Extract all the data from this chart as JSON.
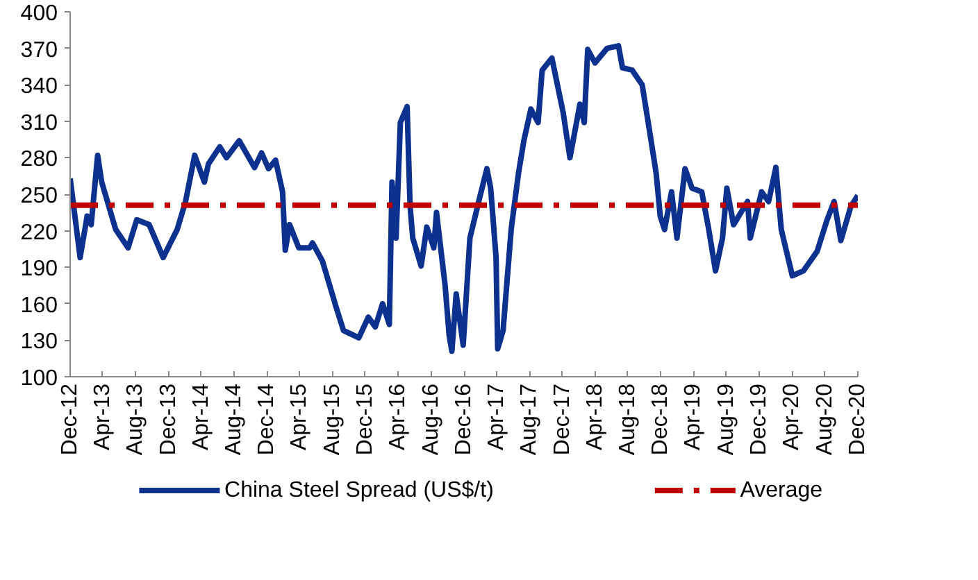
{
  "chart_data": {
    "type": "line",
    "x": [
      "2012-12-01",
      "2013-01-07",
      "2013-02-02",
      "2013-02-17",
      "2013-03-13",
      "2013-03-28",
      "2013-05-19",
      "2013-07-04",
      "2013-08-05",
      "2013-09-20",
      "2013-11-11",
      "2014-01-02",
      "2014-02-02",
      "2014-03-08",
      "2014-04-13",
      "2014-04-28",
      "2014-06-09",
      "2014-07-04",
      "2014-08-20",
      "2014-10-16",
      "2014-11-11",
      "2014-12-07",
      "2015-01-02",
      "2015-01-28",
      "2015-02-07",
      "2015-02-23",
      "2015-03-29",
      "2015-05-09",
      "2015-05-19",
      "2015-06-25",
      "2015-08-15",
      "2015-09-11",
      "2015-11-07",
      "2015-12-12",
      "2016-01-07",
      "2016-02-03",
      "2016-02-28",
      "2016-03-09",
      "2016-03-24",
      "2016-04-09",
      "2016-05-04",
      "2016-05-15",
      "2016-05-25",
      "2016-06-25",
      "2016-07-16",
      "2016-08-11",
      "2016-08-21",
      "2016-09-22",
      "2016-10-07",
      "2016-10-17",
      "2016-11-02",
      "2016-11-28",
      "2016-12-23",
      "2017-01-29",
      "2017-02-24",
      "2017-03-10",
      "2017-03-30",
      "2017-04-05",
      "2017-04-25",
      "2017-05-25",
      "2017-06-21",
      "2017-07-11",
      "2017-08-06",
      "2017-09-02",
      "2017-09-17",
      "2017-10-23",
      "2017-12-04",
      "2017-12-29",
      "2018-02-04",
      "2018-02-20",
      "2018-03-05",
      "2018-04-01",
      "2018-05-16",
      "2018-06-27",
      "2018-07-12",
      "2018-08-17",
      "2018-09-23",
      "2018-10-24",
      "2018-11-14",
      "2018-11-29",
      "2018-12-15",
      "2019-01-10",
      "2019-01-30",
      "2019-03-01",
      "2019-03-27",
      "2019-05-02",
      "2019-05-28",
      "2019-06-22",
      "2019-07-18",
      "2019-08-03",
      "2019-08-28",
      "2019-10-19",
      "2019-10-29",
      "2019-12-10",
      "2020-01-05",
      "2020-02-01",
      "2020-02-21",
      "2020-04-02",
      "2020-05-13",
      "2020-07-03",
      "2020-08-09",
      "2020-09-04",
      "2020-09-29",
      "2020-11-05",
      "2020-12-01"
    ],
    "series": [
      {
        "name": "China Steel Spread (US$/t)",
        "color": "#0d318f",
        "values": [
          263,
          198,
          232,
          225,
          282,
          260,
          221,
          206,
          229,
          225,
          198,
          221,
          244,
          282,
          260,
          275,
          289,
          280,
          294,
          272,
          284,
          271,
          278,
          252,
          204,
          225,
          206,
          206,
          210,
          195,
          157,
          138,
          132,
          149,
          141,
          160,
          143,
          260,
          214,
          309,
          322,
          240,
          214,
          191,
          223,
          206,
          235,
          175,
          134,
          121,
          168,
          126,
          214,
          248,
          271,
          255,
          198,
          123,
          138,
          221,
          267,
          294,
          320,
          309,
          352,
          362,
          317,
          280,
          324,
          309,
          369,
          358,
          370,
          372,
          354,
          352,
          340,
          297,
          267,
          232,
          221,
          252,
          214,
          271,
          255,
          252,
          221,
          187,
          214,
          255,
          225,
          244,
          214,
          252,
          244,
          272,
          221,
          183,
          187,
          203,
          229,
          244,
          212,
          240,
          249
        ]
      }
    ],
    "ref_lines": [
      {
        "axis": "y",
        "value": 241,
        "label": "Average",
        "color": "#c00000",
        "line_style": "dashdot"
      }
    ],
    "ylim": [
      100,
      400
    ],
    "yticks": [
      100,
      130,
      160,
      190,
      220,
      250,
      280,
      310,
      340,
      370,
      400
    ],
    "xlim": [
      "2012-12-01",
      "2020-12-01"
    ],
    "xticks": [
      {
        "value": "2012-12-01",
        "label": "Dec-12"
      },
      {
        "value": "2013-04-01",
        "label": "Apr-13"
      },
      {
        "value": "2013-08-01",
        "label": "Aug-13"
      },
      {
        "value": "2013-12-01",
        "label": "Dec-13"
      },
      {
        "value": "2014-04-01",
        "label": "Apr-14"
      },
      {
        "value": "2014-08-01",
        "label": "Aug-14"
      },
      {
        "value": "2014-12-01",
        "label": "Dec-14"
      },
      {
        "value": "2015-04-01",
        "label": "Apr-15"
      },
      {
        "value": "2015-08-01",
        "label": "Aug-15"
      },
      {
        "value": "2015-12-01",
        "label": "Dec-15"
      },
      {
        "value": "2016-04-01",
        "label": "Apr-16"
      },
      {
        "value": "2016-08-01",
        "label": "Aug-16"
      },
      {
        "value": "2016-12-01",
        "label": "Dec-16"
      },
      {
        "value": "2017-04-01",
        "label": "Apr-17"
      },
      {
        "value": "2017-08-01",
        "label": "Aug-17"
      },
      {
        "value": "2017-12-01",
        "label": "Dec-17"
      },
      {
        "value": "2018-04-01",
        "label": "Apr-18"
      },
      {
        "value": "2018-08-01",
        "label": "Aug-18"
      },
      {
        "value": "2018-12-01",
        "label": "Dec-18"
      },
      {
        "value": "2019-04-01",
        "label": "Apr-19"
      },
      {
        "value": "2019-08-01",
        "label": "Aug-19"
      },
      {
        "value": "2019-12-01",
        "label": "Dec-19"
      },
      {
        "value": "2020-04-01",
        "label": "Apr-20"
      },
      {
        "value": "2020-08-01",
        "label": "Aug-20"
      },
      {
        "value": "2020-12-01",
        "label": "Dec-20"
      }
    ],
    "grid": false,
    "legend": "bottom",
    "line_style": "solid"
  }
}
